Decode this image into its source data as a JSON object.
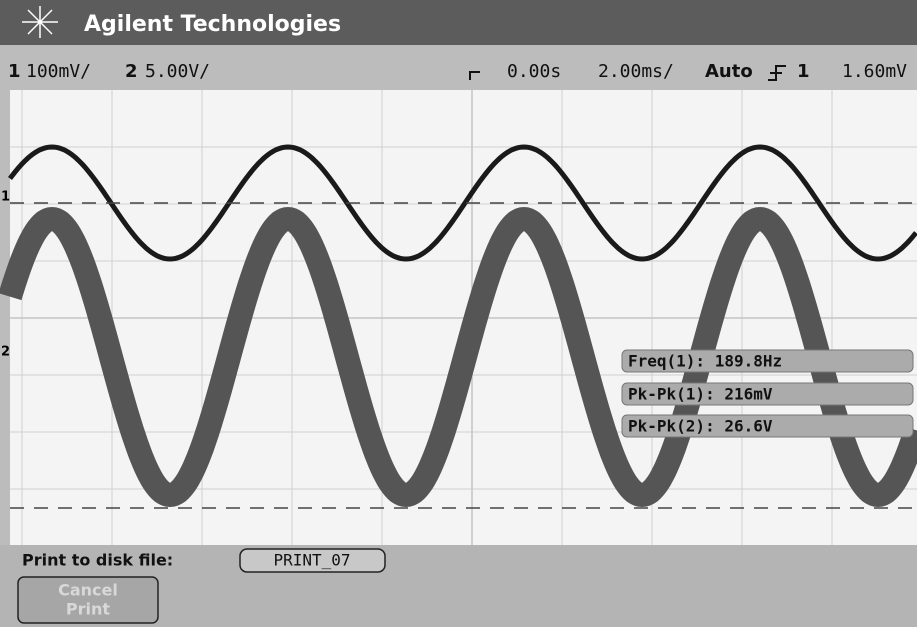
{
  "header": {
    "title": "Agilent Technologies"
  },
  "status": {
    "ch1_label": "1",
    "ch1_scale": "100mV/",
    "ch2_label": "2",
    "ch2_scale": "5.00V/",
    "time_delay": "0.00s",
    "time_scale": "2.00ms/",
    "trigger_mode": "Auto",
    "trigger_source": "1",
    "trigger_level": "1.60mV"
  },
  "screen": {
    "markers": [
      "1",
      "2"
    ],
    "measurements": [
      "Freq(1): 189.8Hz",
      "Pk-Pk(1): 216mV",
      "Pk-Pk(2): 26.6V"
    ]
  },
  "footer": {
    "prompt": "Print to disk file:",
    "filename": "PRINT_07",
    "button": [
      "Cancel",
      "Print"
    ]
  }
}
